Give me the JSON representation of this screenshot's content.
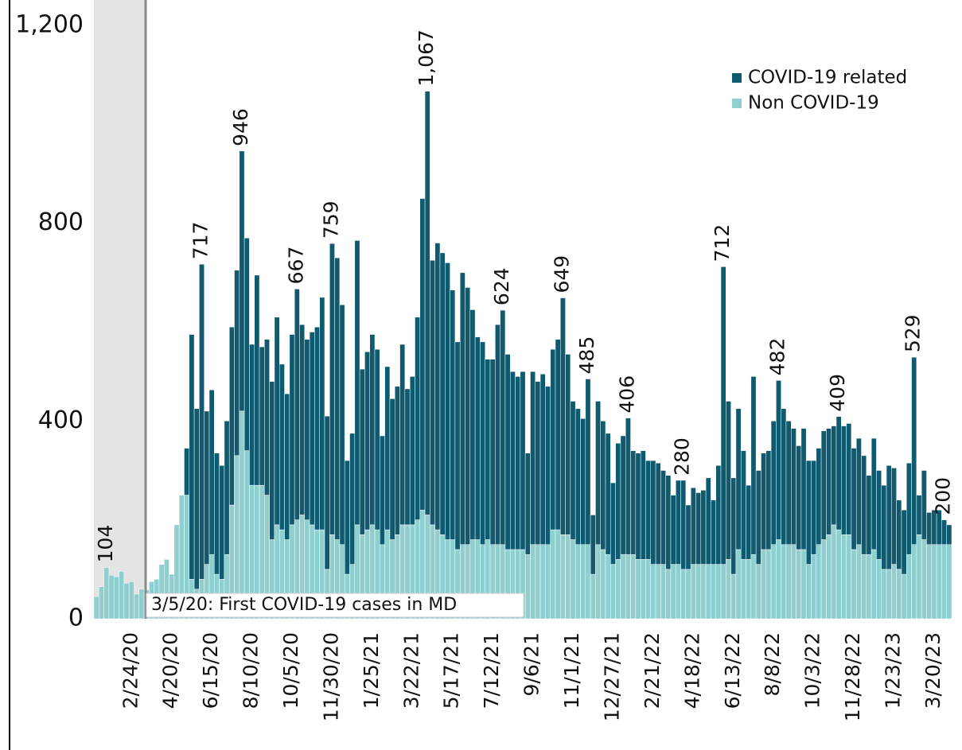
{
  "chart_data": {
    "type": "stacked_bar",
    "annotation": "3/5/20: First COVID-19 cases in MD",
    "categories": [
      null,
      null,
      null,
      null,
      null,
      null,
      null,
      "2/24/20",
      null,
      null,
      null,
      null,
      null,
      null,
      null,
      "4/20/20",
      null,
      null,
      null,
      null,
      null,
      null,
      null,
      "6/15/20",
      null,
      null,
      null,
      null,
      null,
      null,
      null,
      "8/10/20",
      null,
      null,
      null,
      null,
      null,
      null,
      null,
      "10/5/20",
      null,
      null,
      null,
      null,
      null,
      null,
      null,
      "11/30/20",
      null,
      null,
      null,
      null,
      null,
      null,
      null,
      "1/25/21",
      null,
      null,
      null,
      null,
      null,
      null,
      null,
      "3/22/21",
      null,
      null,
      null,
      null,
      null,
      null,
      null,
      "5/17/21",
      null,
      null,
      null,
      null,
      null,
      null,
      null,
      "7/12/21",
      null,
      null,
      null,
      null,
      null,
      null,
      null,
      "9/6/21",
      null,
      null,
      null,
      null,
      null,
      null,
      null,
      "11/1/21",
      null,
      null,
      null,
      null,
      null,
      null,
      null,
      "12/27/21",
      null,
      null,
      null,
      null,
      null,
      null,
      null,
      "2/21/22",
      null,
      null,
      null,
      null,
      null,
      null,
      null,
      "4/18/22",
      null,
      null,
      null,
      null,
      null,
      null,
      null,
      "6/13/22",
      null,
      null,
      null,
      null,
      null,
      null,
      null,
      "8/8/22",
      null,
      null,
      null,
      null,
      null,
      null,
      null,
      "10/3/22",
      null,
      null,
      null,
      null,
      null,
      null,
      null,
      "11/28/22",
      null,
      null,
      null,
      null,
      null,
      null,
      null,
      "1/23/23",
      null,
      null,
      null,
      null,
      null,
      null,
      null,
      "3/20/23",
      null,
      null,
      null
    ],
    "series": [
      {
        "name": "Non COVID-19",
        "color": "#8fcfd0",
        "values": [
          45,
          65,
          104,
          88,
          85,
          96,
          72,
          75,
          50,
          60,
          58,
          75,
          80,
          110,
          120,
          90,
          190,
          250,
          250,
          80,
          60,
          80,
          110,
          130,
          90,
          80,
          130,
          230,
          330,
          420,
          340,
          270,
          270,
          270,
          250,
          160,
          190,
          180,
          160,
          190,
          200,
          210,
          200,
          190,
          180,
          180,
          100,
          170,
          160,
          150,
          90,
          110,
          190,
          170,
          180,
          190,
          180,
          150,
          180,
          160,
          170,
          190,
          190,
          190,
          200,
          220,
          210,
          190,
          180,
          170,
          160,
          160,
          140,
          150,
          150,
          160,
          160,
          150,
          160,
          150,
          150,
          150,
          140,
          140,
          140,
          140,
          130,
          150,
          150,
          150,
          150,
          180,
          180,
          170,
          170,
          160,
          150,
          150,
          150,
          90,
          150,
          140,
          130,
          110,
          120,
          130,
          130,
          130,
          120,
          120,
          120,
          110,
          110,
          110,
          100,
          110,
          110,
          100,
          100,
          110,
          110,
          110,
          110,
          110,
          110,
          110,
          120,
          90,
          140,
          120,
          120,
          130,
          110,
          140,
          140,
          150,
          160,
          150,
          150,
          150,
          140,
          140,
          110,
          130,
          150,
          160,
          170,
          190,
          180,
          170,
          170,
          140,
          150,
          130,
          130,
          140,
          120,
          100,
          100,
          110,
          100,
          90,
          130,
          150,
          170,
          160,
          150,
          150,
          150,
          150,
          150
        ]
      },
      {
        "name": "COVID-19 related",
        "color": "#0f5a6e",
        "values": [
          0,
          0,
          0,
          0,
          0,
          0,
          0,
          0,
          0,
          0,
          0,
          0,
          0,
          0,
          0,
          0,
          0,
          0,
          95,
          495,
          365,
          637,
          310,
          333,
          245,
          230,
          270,
          360,
          375,
          526,
          430,
          285,
          425,
          280,
          315,
          320,
          420,
          335,
          295,
          385,
          467,
          385,
          365,
          390,
          410,
          470,
          310,
          589,
          570,
          485,
          230,
          265,
          575,
          335,
          360,
          385,
          365,
          220,
          330,
          285,
          300,
          365,
          275,
          300,
          410,
          630,
          857,
          535,
          580,
          570,
          560,
          505,
          420,
          550,
          520,
          465,
          410,
          410,
          365,
          375,
          445,
          474,
          395,
          360,
          350,
          360,
          205,
          350,
          330,
          345,
          320,
          365,
          385,
          479,
          365,
          280,
          275,
          255,
          335,
          120,
          290,
          260,
          245,
          165,
          235,
          240,
          276,
          210,
          215,
          220,
          200,
          210,
          205,
          190,
          190,
          140,
          170,
          180,
          130,
          155,
          145,
          150,
          175,
          130,
          200,
          602,
          320,
          195,
          285,
          220,
          150,
          360,
          190,
          195,
          200,
          250,
          322,
          275,
          250,
          235,
          210,
          245,
          210,
          190,
          195,
          220,
          215,
          200,
          229,
          220,
          225,
          205,
          215,
          200,
          160,
          225,
          180,
          170,
          210,
          195,
          140,
          130,
          185,
          379,
          80,
          140,
          65,
          70,
          70,
          50,
          40
        ]
      }
    ],
    "peak_labels": [
      {
        "index": 2,
        "value": 104
      },
      {
        "index": 21,
        "value": 717
      },
      {
        "index": 29,
        "value": 946
      },
      {
        "index": 40,
        "value": 667
      },
      {
        "index": 47,
        "value": 759
      },
      {
        "index": 66,
        "value": 1067,
        "label": "1,067"
      },
      {
        "index": 81,
        "value": 624
      },
      {
        "index": 93,
        "value": 649
      },
      {
        "index": 98,
        "value": 485
      },
      {
        "index": 106,
        "value": 406
      },
      {
        "index": 117,
        "value": 280
      },
      {
        "index": 125,
        "value": 712
      },
      {
        "index": 136,
        "value": 482
      },
      {
        "index": 148,
        "value": 409
      },
      {
        "index": 163,
        "value": 529
      },
      {
        "index": 169,
        "value": 200
      }
    ],
    "ylim": [
      0,
      1200
    ],
    "yticks": [
      0,
      400,
      800,
      {
        "value": 1200,
        "label": "1,200"
      }
    ],
    "grid": false,
    "legend": "upper right"
  }
}
